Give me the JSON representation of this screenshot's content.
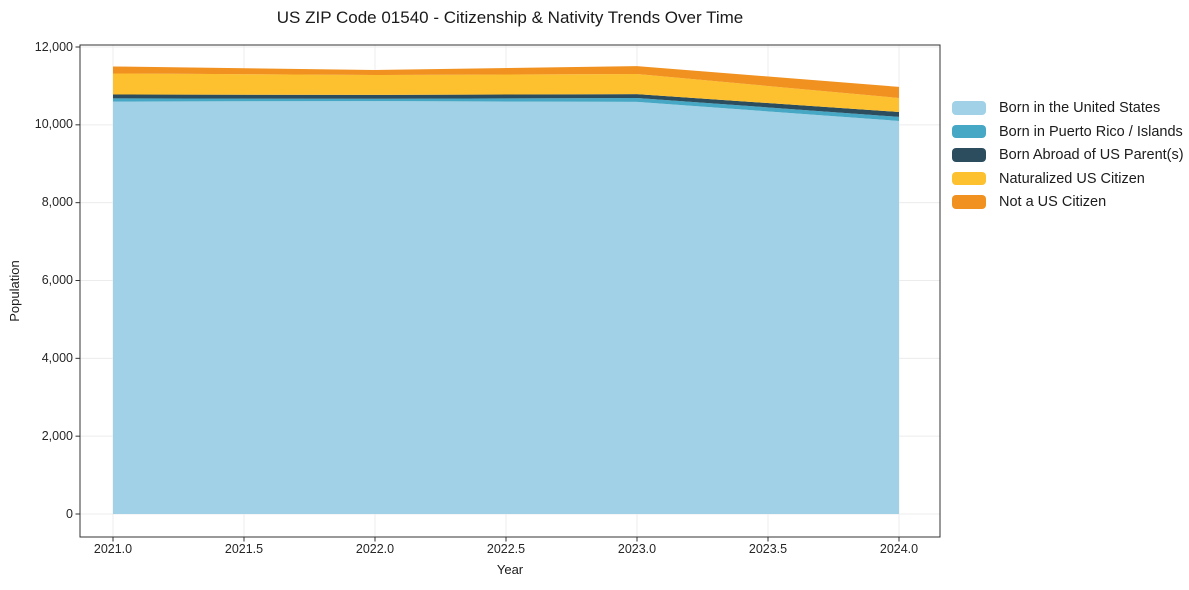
{
  "title": "US ZIP Code 01540 - Citizenship & Nativity Trends Over Time",
  "chart_data": {
    "type": "area",
    "stacked": true,
    "title": "US ZIP Code 01540 - Citizenship & Nativity Trends Over Time",
    "xlabel": "Year",
    "ylabel": "Population",
    "grid": true,
    "legend_position": "right-outside",
    "x": [
      2021,
      2022,
      2023,
      2024
    ],
    "xlim": [
      2020.87,
      2024.16
    ],
    "ylim": [
      -590,
      12050
    ],
    "xticks": [
      2021.0,
      2021.5,
      2022.0,
      2022.5,
      2023.0,
      2023.5,
      2024.0
    ],
    "xtick_labels": [
      "2021.0",
      "2021.5",
      "2022.0",
      "2022.5",
      "2023.0",
      "2023.5",
      "2024.0"
    ],
    "yticks": [
      0,
      2000,
      4000,
      6000,
      8000,
      10000,
      12000
    ],
    "ytick_labels": [
      "0",
      "2,000",
      "4,000",
      "6,000",
      "8,000",
      "10,000",
      "12,000"
    ],
    "series": [
      {
        "name": "Born in the United States",
        "color": "#a1d1e6",
        "values": [
          10600,
          10610,
          10590,
          10100
        ]
      },
      {
        "name": "Born in Puerto Rico / Islands",
        "color": "#46a8c5",
        "values": [
          80,
          60,
          100,
          105
        ]
      },
      {
        "name": "Born Abroad of US Parent(s)",
        "color": "#2b4d5e",
        "values": [
          100,
          100,
          100,
          125
        ]
      },
      {
        "name": "Naturalized US Citizen",
        "color": "#fdc02f",
        "values": [
          540,
          510,
          515,
          360
        ]
      },
      {
        "name": "Not a US Citizen",
        "color": "#f19120",
        "values": [
          180,
          130,
          205,
          285
        ]
      }
    ],
    "stacked_totals": [
      11500,
      11410,
      11510,
      10975
    ],
    "colors": {
      "grid": "#ececec",
      "spine": "#333333",
      "text": "#1a1a1a",
      "background": "#ffffff"
    }
  }
}
